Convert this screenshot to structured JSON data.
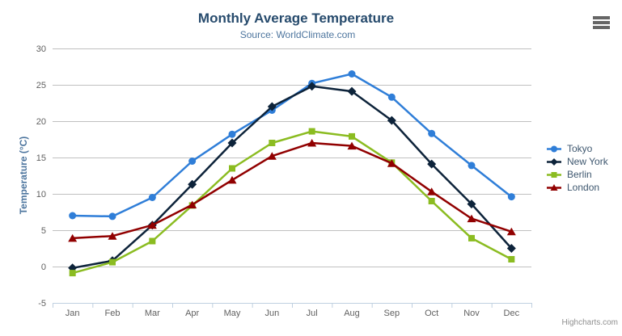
{
  "chart_data": {
    "type": "line",
    "title": "Monthly Average Temperature",
    "subtitle": "Source: WorldClimate.com",
    "categories": [
      "Jan",
      "Feb",
      "Mar",
      "Apr",
      "May",
      "Jun",
      "Jul",
      "Aug",
      "Sep",
      "Oct",
      "Nov",
      "Dec"
    ],
    "series": [
      {
        "name": "Tokyo",
        "color": "#2f7ed8",
        "marker": "circle",
        "values": [
          7.0,
          6.9,
          9.5,
          14.5,
          18.2,
          21.5,
          25.2,
          26.5,
          23.3,
          18.3,
          13.9,
          9.6
        ]
      },
      {
        "name": "New York",
        "color": "#0d233a",
        "marker": "diamond",
        "values": [
          -0.2,
          0.8,
          5.7,
          11.3,
          17.0,
          22.0,
          24.8,
          24.1,
          20.1,
          14.1,
          8.6,
          2.5
        ]
      },
      {
        "name": "Berlin",
        "color": "#8bbc21",
        "marker": "square",
        "values": [
          -0.9,
          0.6,
          3.5,
          8.4,
          13.5,
          17.0,
          18.6,
          17.9,
          14.3,
          9.0,
          3.9,
          1.0
        ]
      },
      {
        "name": "London",
        "color": "#910000",
        "marker": "triangle",
        "values": [
          3.9,
          4.2,
          5.7,
          8.5,
          11.9,
          15.2,
          17.0,
          16.6,
          14.2,
          10.3,
          6.6,
          4.8
        ]
      }
    ],
    "xlabel": "",
    "ylabel": "Temperature (°C)",
    "ylim": [
      -5,
      30
    ],
    "yticks": [
      -5,
      0,
      5,
      10,
      15,
      20,
      25,
      30
    ],
    "grid": true,
    "legend_position": "right-middle-vertical"
  },
  "credits": "Highcharts.com",
  "icons": {
    "menu": "hamburger-export-menu-icon"
  },
  "colors": {
    "background": "#ffffff",
    "title": "#274b6d",
    "subtitle": "#4d759e",
    "axis_title": "#4d759e",
    "tick_label": "#606060",
    "grid_line": "#C0C0C0",
    "axis_line": "#C0D0E0",
    "legend_text": "#3E576F",
    "credits": "#909090",
    "menu_icon": "#666666"
  }
}
